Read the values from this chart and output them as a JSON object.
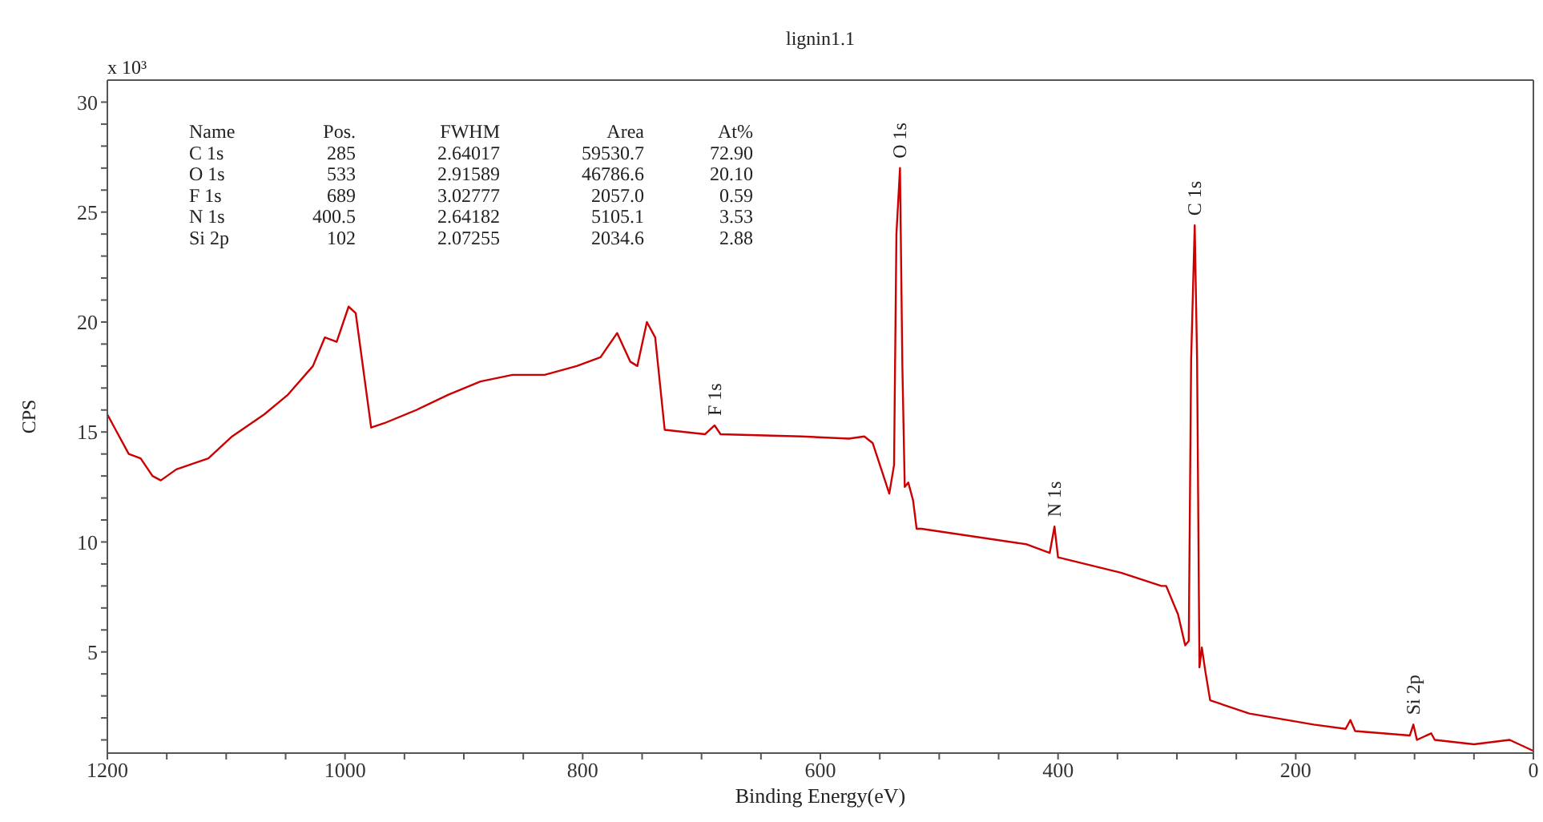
{
  "chart_data": {
    "type": "line",
    "title": "lignin1.1",
    "xlabel": "Binding Energy(eV)",
    "ylabel": "CPS",
    "marker": "none",
    "line_style": "solid",
    "xlim": [
      1200,
      0
    ],
    "ylim": [
      0.4,
      31
    ],
    "xticks": [
      1200,
      {
        "value": 1150,
        "label": null
      },
      {
        "value": 1100,
        "label": null
      },
      {
        "value": 1050,
        "label": null
      },
      1000,
      {
        "value": 950,
        "label": null
      },
      {
        "value": 900,
        "label": null
      },
      {
        "value": 850,
        "label": null
      },
      800,
      {
        "value": 750,
        "label": null
      },
      {
        "value": 700,
        "label": null
      },
      {
        "value": 650,
        "label": null
      },
      600,
      {
        "value": 550,
        "label": null
      },
      {
        "value": 500,
        "label": null
      },
      {
        "value": 450,
        "label": null
      },
      400,
      {
        "value": 350,
        "label": null
      },
      {
        "value": 300,
        "label": null
      },
      {
        "value": 250,
        "label": null
      },
      200,
      {
        "value": 150,
        "label": null
      },
      {
        "value": 100,
        "label": null
      },
      {
        "value": 50,
        "label": null
      },
      0
    ],
    "yticks": [
      {
        "value": 1,
        "label": null
      },
      {
        "value": 2,
        "label": null
      },
      {
        "value": 3,
        "label": null
      },
      {
        "value": 4,
        "label": null
      },
      5,
      {
        "value": 6,
        "label": null
      },
      {
        "value": 7,
        "label": null
      },
      {
        "value": 8,
        "label": null
      },
      {
        "value": 9,
        "label": null
      },
      10,
      {
        "value": 11,
        "label": null
      },
      {
        "value": 12,
        "label": null
      },
      {
        "value": 13,
        "label": null
      },
      {
        "value": 14,
        "label": null
      },
      15,
      {
        "value": 16,
        "label": null
      },
      {
        "value": 17,
        "label": null
      },
      {
        "value": 18,
        "label": null
      },
      {
        "value": 19,
        "label": null
      },
      20,
      {
        "value": 21,
        "label": null
      },
      {
        "value": 22,
        "label": null
      },
      {
        "value": 23,
        "label": null
      },
      {
        "value": 24,
        "label": null
      },
      25,
      {
        "value": 26,
        "label": null
      },
      {
        "value": 27,
        "label": null
      },
      {
        "value": 28,
        "label": null
      },
      {
        "value": 29,
        "label": null
      },
      30
    ],
    "series": [
      {
        "color": "#cc0000",
        "x": [
          1200,
          1193,
          1182,
          1172,
          1162,
          1155,
          1142,
          1115,
          1095,
          1068,
          1048,
          1027,
          1017,
          1007,
          997,
          991,
          978,
          967,
          940,
          913,
          886,
          859,
          832,
          805,
          785,
          771,
          760,
          754,
          746,
          739,
          731,
          697,
          689,
          684,
          616,
          576,
          563,
          556,
          542,
          538,
          536,
          533,
          531,
          529,
          526,
          522,
          519,
          515,
          427,
          407,
          403,
          400,
          347,
          313,
          309,
          299,
          293,
          290,
          288,
          285,
          283,
          281,
          279,
          276,
          272,
          239,
          185,
          158,
          154,
          150,
          104,
          101,
          98,
          86,
          83,
          50,
          20,
          0
        ],
        "values": [
          15.8,
          15.1,
          14.0,
          13.8,
          13.0,
          12.8,
          13.3,
          13.8,
          14.8,
          15.8,
          16.7,
          18.0,
          19.3,
          19.1,
          20.7,
          20.4,
          15.2,
          15.4,
          16.0,
          16.7,
          17.3,
          17.6,
          17.6,
          18.0,
          18.4,
          19.5,
          18.2,
          18.0,
          20.0,
          19.3,
          15.1,
          14.9,
          15.3,
          14.9,
          14.8,
          14.7,
          14.8,
          14.5,
          12.2,
          13.5,
          24.0,
          27.0,
          18.0,
          12.5,
          12.7,
          11.9,
          10.6,
          10.6,
          9.9,
          9.5,
          10.7,
          9.3,
          8.6,
          8.0,
          8.0,
          6.7,
          5.3,
          5.5,
          18.3,
          24.4,
          18.3,
          4.3,
          5.2,
          4.1,
          2.8,
          2.2,
          1.7,
          1.5,
          1.9,
          1.4,
          1.2,
          1.7,
          1.0,
          1.3,
          1.0,
          0.8,
          1.0,
          0.5
        ]
      }
    ],
    "annotations": [
      "x 10³",
      "Name",
      "Pos.",
      "FWHM",
      "Area",
      "At%",
      "C 1s",
      "285",
      "2.64017",
      "59530.7",
      "72.90",
      "O 1s",
      "533",
      "2.91589",
      "46786.6",
      "20.10",
      "F 1s",
      "689",
      "3.02777",
      "2057.0",
      "0.59",
      "N 1s",
      "400.5",
      "2.64182",
      "5105.1",
      "3.53",
      "Si 2p",
      "102",
      "2.07255",
      "2034.6",
      "2.88",
      {
        "text": "O 1s",
        "x": 533,
        "y": 27.0
      },
      {
        "text": "C 1s",
        "x": 285,
        "y": 24.4
      },
      {
        "text": "F 1s",
        "x": 689,
        "y": 15.3
      },
      {
        "text": "N 1s",
        "x": 403,
        "y": 10.7
      },
      {
        "text": "Si 2p",
        "x": 101,
        "y": 1.7
      }
    ]
  }
}
